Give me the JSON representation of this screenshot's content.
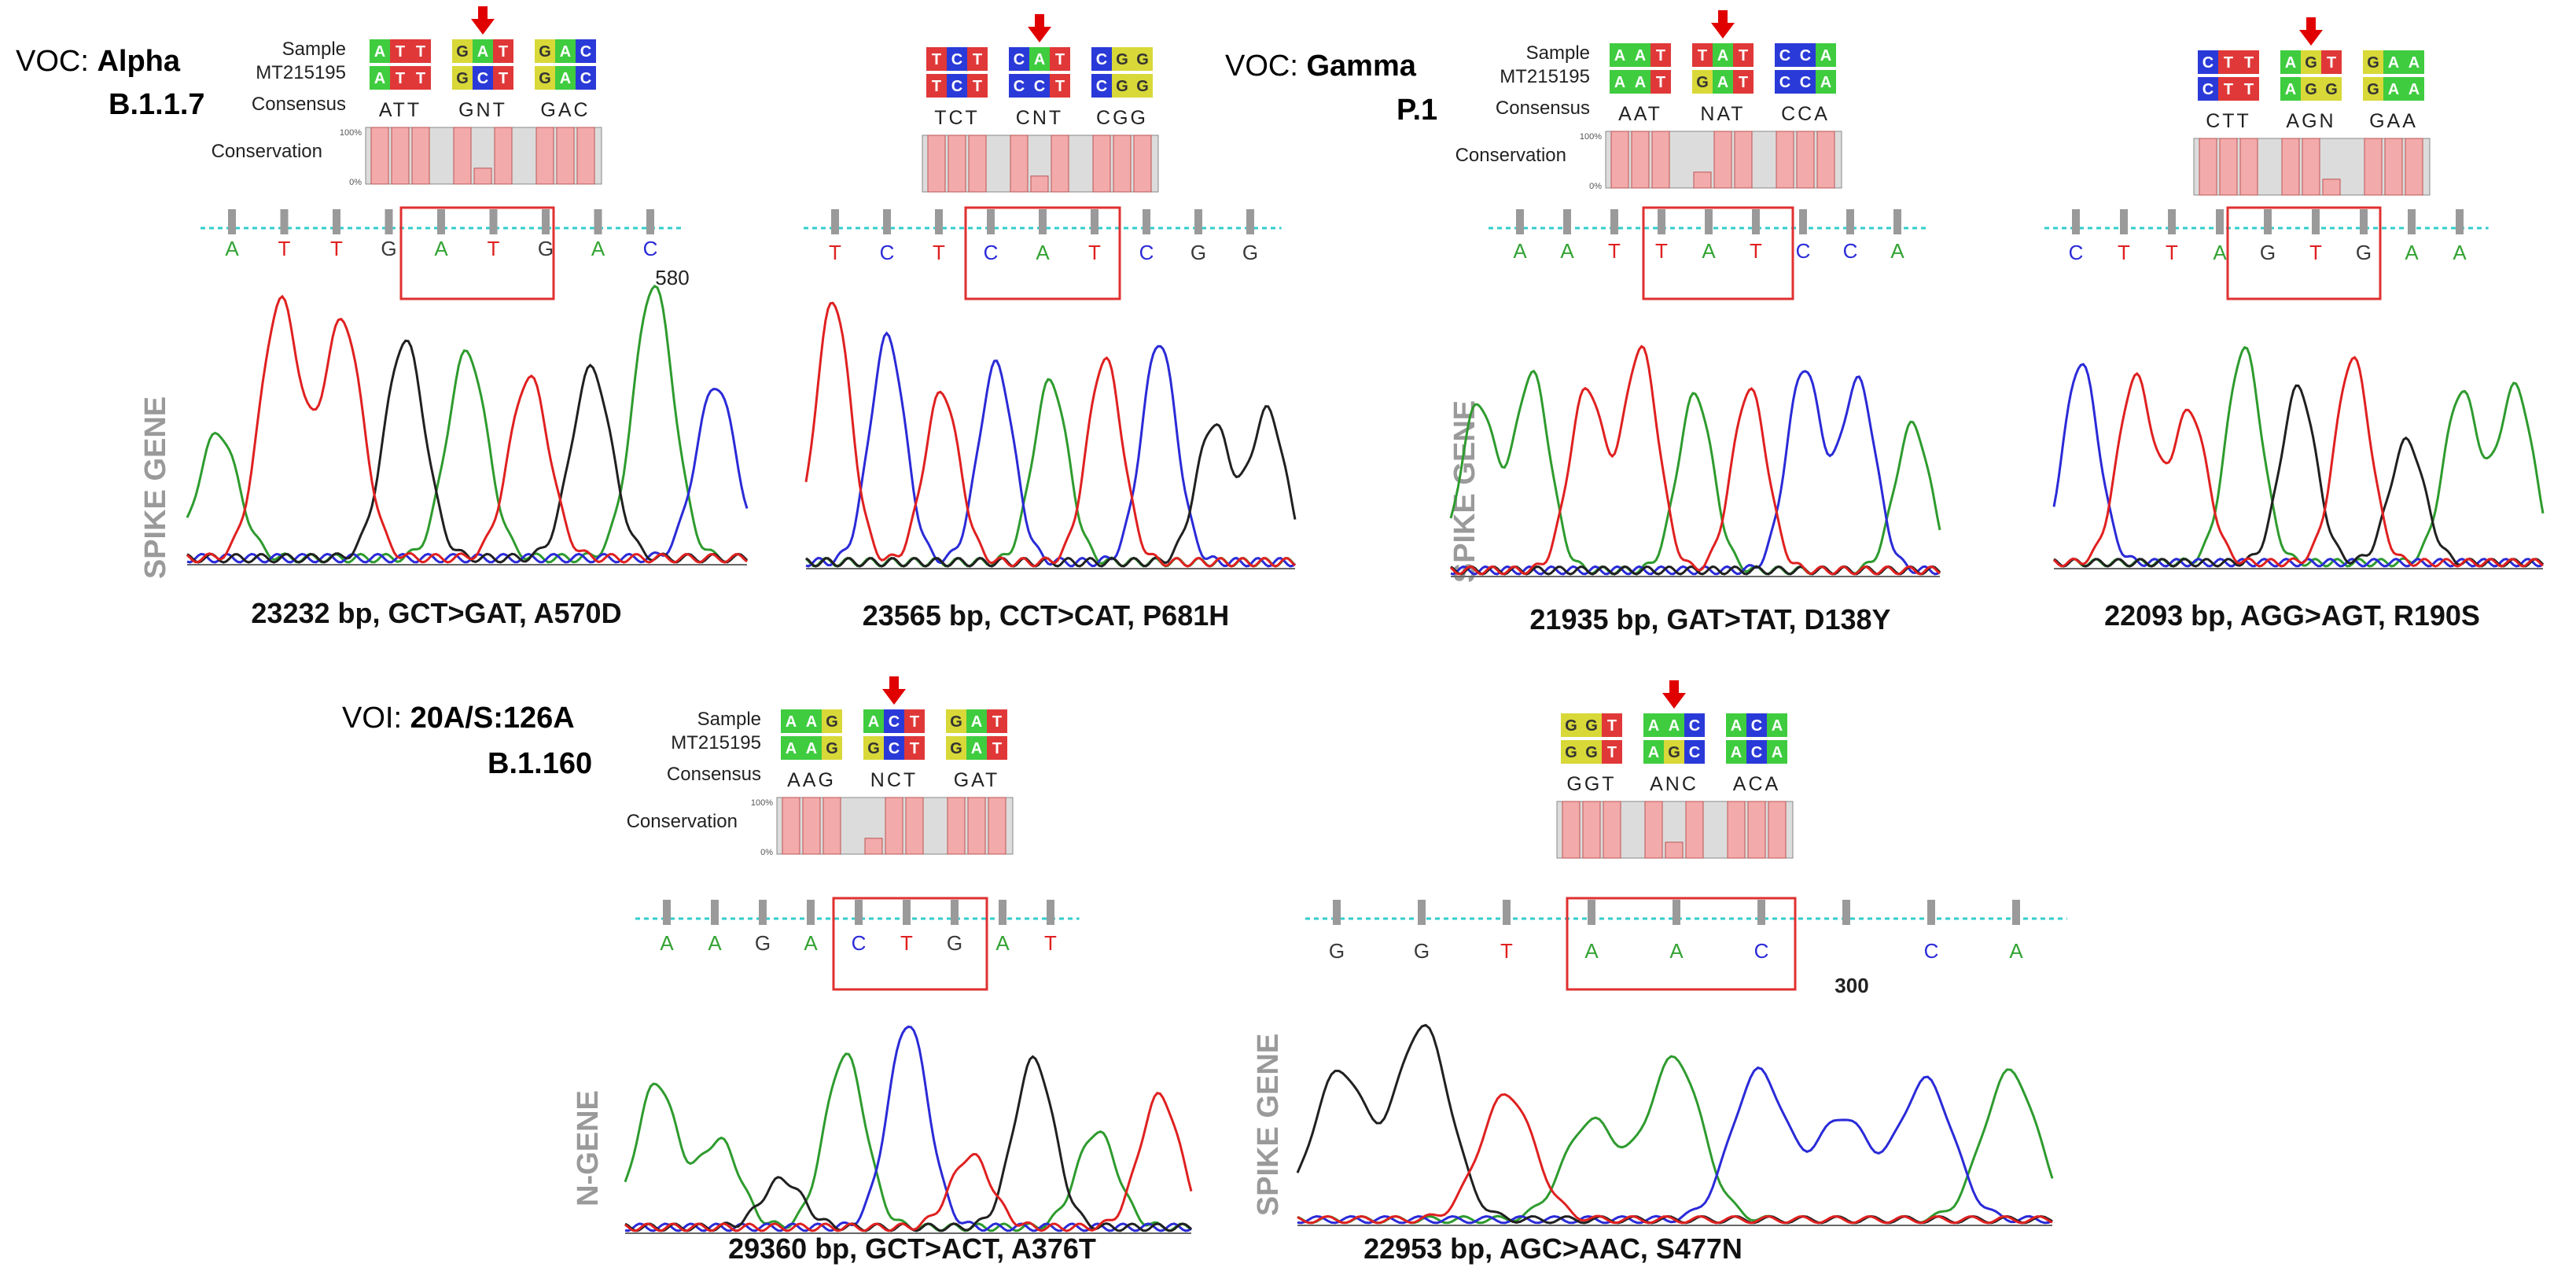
{
  "colors": {
    "A": "#2e9b2e",
    "C": "#2a2ad8",
    "G": "#202020",
    "T": "#e02020",
    "G_text": "#3a3a3a",
    "cellA": "#3fcc3f",
    "cellC": "#2a3ad8",
    "cellG": "#d8d838",
    "cellT": "#e03838",
    "cons_bar": "#f3aaaa",
    "cons_bg": "#dcdcdc",
    "arrow": "#e00000",
    "box": "#e03030",
    "dotted": "#33cccc"
  },
  "labels": {
    "sample": "Sample",
    "ref": "MT215195",
    "consensus": "Consensus",
    "conservation": "Conservation",
    "pct100": "100%",
    "pct0": "0%"
  },
  "groups": [
    {
      "prefix": "VOC: ",
      "name": "Alpha",
      "lineage": "B.1.1.7"
    },
    {
      "prefix": "VOC: ",
      "name": "Gamma",
      "lineage": "P.1"
    },
    {
      "prefix": "VOI: ",
      "name": "20A/S:126A",
      "lineage": "B.1.160"
    }
  ],
  "gene_labels": [
    "SPIKE GENE",
    "SPIKE GENE",
    "N-GENE",
    "SPIKE GENE"
  ],
  "panels": [
    {
      "sample": [
        "ATT",
        "GAT",
        "GAC"
      ],
      "ref": [
        "ATT",
        "GCT",
        "GAC"
      ],
      "consensus": [
        "ATT",
        "GNT",
        "GAC"
      ],
      "trace_bases": [
        "A",
        "T",
        "T",
        "G",
        "A",
        "T",
        "G",
        "A",
        "C"
      ],
      "position_label": "580",
      "caption": "23232 bp, GCT>GAT, A570D"
    },
    {
      "sample": [
        "TCT",
        "CAT",
        "CGG"
      ],
      "ref": [
        "TCT",
        "CCT",
        "CGG"
      ],
      "consensus": [
        "TCT",
        "CNT",
        "CGG"
      ],
      "trace_bases": [
        "T",
        "C",
        "T",
        "C",
        "A",
        "T",
        "C",
        "G",
        "G"
      ],
      "position_label": "",
      "caption": "23565 bp, CCT>CAT, P681H"
    },
    {
      "sample": [
        "AAT",
        "TAT",
        "CCA"
      ],
      "ref": [
        "AAT",
        "GAT",
        "CCA"
      ],
      "consensus": [
        "AAT",
        "NAT",
        "CCA"
      ],
      "trace_bases": [
        "A",
        "A",
        "T",
        "T",
        "A",
        "T",
        "C",
        "C",
        "A"
      ],
      "position_label": "",
      "caption": "21935 bp, GAT>TAT, D138Y"
    },
    {
      "sample": [
        "CTT",
        "AGT",
        "GAA"
      ],
      "ref": [
        "CTT",
        "AGG",
        "GAA"
      ],
      "consensus": [
        "CTT",
        "AGN",
        "GAA"
      ],
      "trace_bases": [
        "C",
        "T",
        "T",
        "A",
        "G",
        "T",
        "G",
        "A",
        "A"
      ],
      "position_label": "",
      "caption": "22093 bp, AGG>AGT, R190S"
    },
    {
      "sample": [
        "AAG",
        "ACT",
        "GAT"
      ],
      "ref": [
        "AAG",
        "GCT",
        "GAT"
      ],
      "consensus": [
        "AAG",
        "NCT",
        "GAT"
      ],
      "trace_bases": [
        "A",
        "A",
        "G",
        "A",
        "C",
        "T",
        "G",
        "A",
        "T"
      ],
      "position_label": "",
      "caption": "29360 bp, GCT>ACT, A376T"
    },
    {
      "sample": [
        "GGT",
        "AAC",
        "ACA"
      ],
      "ref": [
        "GGT",
        "AGC",
        "ACA"
      ],
      "consensus": [
        "GGT",
        "ANC",
        "ACA"
      ],
      "trace_bases": [
        "G",
        "G",
        "T",
        "A",
        "A",
        "C",
        "",
        "C",
        "A"
      ],
      "position_label": "300",
      "caption": "22953 bp, AGC>AAC, S477N"
    }
  ]
}
